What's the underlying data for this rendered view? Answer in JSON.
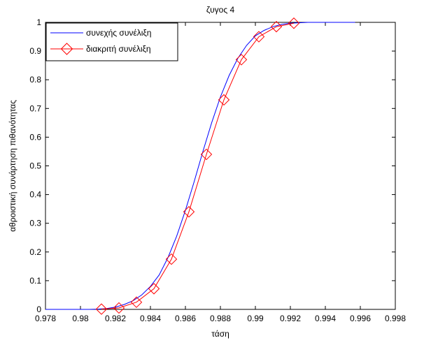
{
  "chart_data": {
    "type": "line",
    "title": "ζυγος 4",
    "xlabel": "τάση",
    "ylabel": "αθροιστική συνάρτηση πιθανότητας",
    "xlim": [
      0.978,
      0.998
    ],
    "ylim": [
      0,
      1
    ],
    "xticks": [
      "0.978",
      "0.98",
      "0.982",
      "0.984",
      "0.986",
      "0.988",
      "0.99",
      "0.992",
      "0.994",
      "0.996",
      "0.998"
    ],
    "yticks": [
      "0",
      "0.1",
      "0.2",
      "0.3",
      "0.4",
      "0.5",
      "0.6",
      "0.7",
      "0.8",
      "0.9",
      "1"
    ],
    "grid": false,
    "legend_position": "top-left",
    "series": [
      {
        "name": "συνεχής συνέλιξη",
        "color": "#0000ff",
        "marker": "none",
        "x": [
          0.978,
          0.9805,
          0.981,
          0.9815,
          0.982,
          0.9825,
          0.983,
          0.9835,
          0.984,
          0.9845,
          0.985,
          0.9855,
          0.986,
          0.9865,
          0.987,
          0.9875,
          0.988,
          0.9885,
          0.989,
          0.9895,
          0.99,
          0.9905,
          0.991,
          0.9915,
          0.992,
          0.993,
          0.9957
        ],
        "y": [
          0,
          0,
          0.001,
          0.003,
          0.008,
          0.017,
          0.03,
          0.05,
          0.08,
          0.12,
          0.18,
          0.255,
          0.345,
          0.445,
          0.55,
          0.65,
          0.74,
          0.815,
          0.875,
          0.92,
          0.953,
          0.972,
          0.985,
          0.993,
          0.997,
          1,
          1
        ]
      },
      {
        "name": "διακριτή συνέλιξη",
        "color": "#ff0000",
        "marker": "diamond",
        "x": [
          0.9812,
          0.9822,
          0.9832,
          0.9842,
          0.9852,
          0.9862,
          0.9872,
          0.9882,
          0.9892,
          0.9902,
          0.9912,
          0.9922
        ],
        "y": [
          0.001,
          0.005,
          0.025,
          0.072,
          0.175,
          0.34,
          0.54,
          0.73,
          0.87,
          0.95,
          0.985,
          0.997
        ]
      }
    ]
  }
}
